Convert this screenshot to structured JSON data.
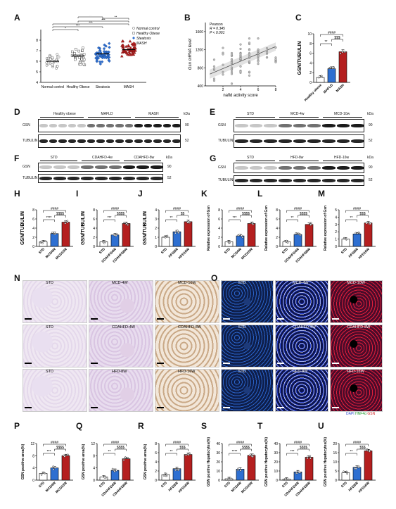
{
  "panels": {
    "A": "A",
    "B": "B",
    "C": "C",
    "D": "D",
    "E": "E",
    "F": "F",
    "G": "G",
    "H": "H",
    "I": "I",
    "J": "J",
    "K": "K",
    "L": "L",
    "M": "M",
    "N": "N",
    "O": "O",
    "P": "P",
    "Q": "Q",
    "R": "R",
    "S": "S",
    "T": "T",
    "U": "U"
  },
  "colors": {
    "red": "#b41f1f",
    "blue": "#2e6fd1",
    "white": "#ffffff",
    "scatter_gray": "#bfbfbf",
    "dark": "#222222"
  },
  "chart_data": [
    {
      "id": "A",
      "type": "scatter",
      "categories": [
        "Normal control",
        "Healthy Obese",
        "Steatosis",
        "MASH"
      ],
      "ylim": [
        4,
        9
      ],
      "yticks": [
        4,
        5,
        6,
        7,
        8
      ],
      "series": [
        {
          "name": "Normal control",
          "marker": "circle",
          "fill": "#ffffff",
          "mean": 6.0,
          "n": 28
        },
        {
          "name": "Healthy Obese",
          "marker": "square",
          "fill": "#ffffff",
          "mean": 6.5,
          "n": 30
        },
        {
          "name": "Steatosis",
          "marker": "diamond",
          "fill": "#2e6fd1",
          "mean": 6.7,
          "n": 60
        },
        {
          "name": "MASH",
          "marker": "triangle",
          "fill": "#b41f1f",
          "mean": 7.1,
          "n": 60
        }
      ],
      "legend": [
        "Normal control",
        "Healthy Obese",
        "Steatosis",
        "MASH"
      ],
      "sig": [
        "*",
        "***",
        "***",
        "***",
        "**",
        "**"
      ]
    },
    {
      "id": "B",
      "type": "scatter",
      "ylabel": "Gsn mRNA level",
      "xlabel": "nafld activity score",
      "xlim": [
        0,
        8
      ],
      "ylim": [
        400,
        1800
      ],
      "xticks": [
        2,
        4,
        6,
        8
      ],
      "yticks": [
        400,
        800,
        1200,
        1600
      ],
      "annotations": [
        "Pearson",
        "R = 0.345",
        "P < 0.001"
      ]
    }
  ],
  "bars": {
    "C": {
      "ylabel": "GSN/TUBULIN",
      "categories": [
        "Healthy obese",
        "MAFLD",
        "MASH"
      ],
      "values": [
        1.0,
        2.8,
        6.3
      ],
      "ylim": [
        0,
        10
      ],
      "yticks": [
        0,
        2,
        4,
        6,
        8,
        10
      ],
      "sig": [
        "**",
        "$$$",
        "####"
      ]
    },
    "H": {
      "ylabel": "GSN/TUBULIN",
      "categories": [
        "STD",
        "MCD4W",
        "MCD10W"
      ],
      "values": [
        1.0,
        2.8,
        5.3
      ],
      "ylim": [
        0,
        8
      ],
      "yticks": [
        0,
        2,
        4,
        6,
        8
      ],
      "sig": [
        "****",
        "$$$$",
        "####"
      ]
    },
    "I": {
      "ylabel": "GSN/TUBULIN",
      "categories": [
        "STD",
        "CDAHFD4W",
        "CDAHFD8W"
      ],
      "values": [
        1.0,
        2.5,
        5.0
      ],
      "ylim": [
        0,
        8
      ],
      "yticks": [
        0,
        2,
        4,
        6,
        8
      ],
      "sig": [
        "***",
        "$$$$",
        "####"
      ]
    },
    "J": {
      "ylabel": "GSN/TUBULIN",
      "categories": [
        "STD",
        "HFD8W",
        "HFD16W"
      ],
      "values": [
        1.0,
        1.6,
        2.7
      ],
      "ylim": [
        0,
        4
      ],
      "yticks": [
        0,
        1,
        2,
        3,
        4
      ],
      "sig": [
        "**",
        "$$",
        "####"
      ]
    },
    "K": {
      "ylabel": "Relative expression of Gsn",
      "categories": [
        "STD",
        "MCD4W",
        "MCD10W"
      ],
      "values": [
        1.0,
        2.3,
        5.0
      ],
      "ylim": [
        0,
        8
      ],
      "yticks": [
        0,
        2,
        4,
        6,
        8
      ],
      "sig": [
        "***",
        "$$$$",
        "####"
      ]
    },
    "L": {
      "ylabel": "Relative expression of Gsn",
      "categories": [
        "STD",
        "CDAHFD4W",
        "CDAHFD8W"
      ],
      "values": [
        1.0,
        2.6,
        4.8
      ],
      "ylim": [
        0,
        8
      ],
      "yticks": [
        0,
        2,
        4,
        6,
        8
      ],
      "sig": [
        "**",
        "$$$$",
        "####"
      ]
    },
    "M": {
      "ylabel": "Relative expression of Gsn",
      "categories": [
        "STD",
        "HFD8W",
        "HFD16W"
      ],
      "values": [
        1.0,
        1.7,
        3.2
      ],
      "ylim": [
        0,
        5
      ],
      "yticks": [
        0,
        1,
        2,
        3,
        4,
        5
      ],
      "sig": [
        "**",
        "$$$",
        "####"
      ]
    },
    "P": {
      "ylabel": "GSN positive area(%)",
      "categories": [
        "STD",
        "MCD4W",
        "MCD10W"
      ],
      "values": [
        2.2,
        4.0,
        8.0
      ],
      "ylim": [
        0,
        12
      ],
      "yticks": [
        0,
        4,
        8,
        12
      ],
      "sig": [
        "***",
        "$$$$",
        "####"
      ]
    },
    "Q": {
      "ylabel": "GSN positive area(%)",
      "categories": [
        "STD",
        "CDAHFD4W",
        "CDAHFD8W"
      ],
      "values": [
        1.0,
        3.2,
        7.0
      ],
      "ylim": [
        0,
        12
      ],
      "yticks": [
        0,
        4,
        8,
        12
      ],
      "sig": [
        "**",
        "$$$$",
        "####"
      ]
    },
    "R": {
      "ylabel": "GSN positive area(%)",
      "categories": [
        "STD",
        "HFD8W",
        "HFD16W"
      ],
      "values": [
        1.2,
        2.5,
        5.6
      ],
      "ylim": [
        0,
        8
      ],
      "yticks": [
        0,
        2,
        4,
        6,
        8
      ],
      "sig": [
        "**",
        "$$$",
        "####"
      ]
    },
    "S": {
      "ylabel": "GSN positive Hepatocytes(%)",
      "categories": [
        "STD",
        "MCD4W",
        "MCD10W"
      ],
      "values": [
        1.5,
        12.0,
        27.0
      ],
      "ylim": [
        0,
        40
      ],
      "yticks": [
        0,
        10,
        20,
        30,
        40
      ],
      "sig": [
        "****",
        "$$$$",
        "####"
      ]
    },
    "T": {
      "ylabel": "GSN positive Hepatocytes(%)",
      "categories": [
        "STD",
        "CDAHFD4W",
        "CDAHFD8W"
      ],
      "values": [
        1.0,
        9.0,
        25.0
      ],
      "ylim": [
        0,
        40
      ],
      "yticks": [
        0,
        10,
        20,
        30,
        40
      ],
      "sig": [
        "***",
        "$$$$",
        "####"
      ]
    },
    "U": {
      "ylabel": "GSN positive Hepatocytes(%)",
      "categories": [
        "STD",
        "HFD8W",
        "HFD16W"
      ],
      "values": [
        4.0,
        7.0,
        16.0
      ],
      "ylim": [
        0,
        20
      ],
      "yticks": [
        0,
        5,
        10,
        15,
        20
      ],
      "sig": [
        "**",
        "$$$",
        "####"
      ]
    }
  },
  "blots": {
    "D": {
      "groups": [
        "Healthy obese",
        "MAFLD",
        "MASH"
      ],
      "rows": [
        "GSN",
        "TUBULIN"
      ],
      "kda": [
        "kDa",
        "90",
        "52"
      ]
    },
    "E": {
      "groups": [
        "STD",
        "MCD-4w",
        "MCD-10w"
      ],
      "rows": [
        "GSN",
        "TUBULIN"
      ],
      "kda": [
        "kDa",
        "90",
        "52"
      ]
    },
    "F": {
      "groups": [
        "STD",
        "CDAHFD-4w",
        "CDAHFD-8w"
      ],
      "rows": [
        "GSN",
        "TUBULIN"
      ],
      "kda": [
        "kDa",
        "90",
        "52"
      ]
    },
    "G": {
      "groups": [
        "STD",
        "HFD-8w",
        "HFD-16w"
      ],
      "rows": [
        "GSN",
        "TUBULIN"
      ],
      "kda": [
        "kDa",
        "90",
        "52"
      ]
    }
  },
  "histology": {
    "N": {
      "labels": [
        "STD",
        "MCD-4W",
        "MCD-10W",
        "STD",
        "CDAHFD-4W",
        "CDAHFD-8W",
        "STD",
        "HFD-8W",
        "HFD-16W"
      ]
    },
    "O": {
      "labels": [
        "STD",
        "MCD-4W",
        "MCD-10W",
        "STD",
        "CDAHFD-4W",
        "CDAHFD-8W",
        "STD",
        "HFD-8W",
        "HFD-16W"
      ],
      "legend": {
        "dapi": "DAPI",
        "hnf4a": "HNF4α",
        "gsn": "GSN"
      }
    }
  }
}
